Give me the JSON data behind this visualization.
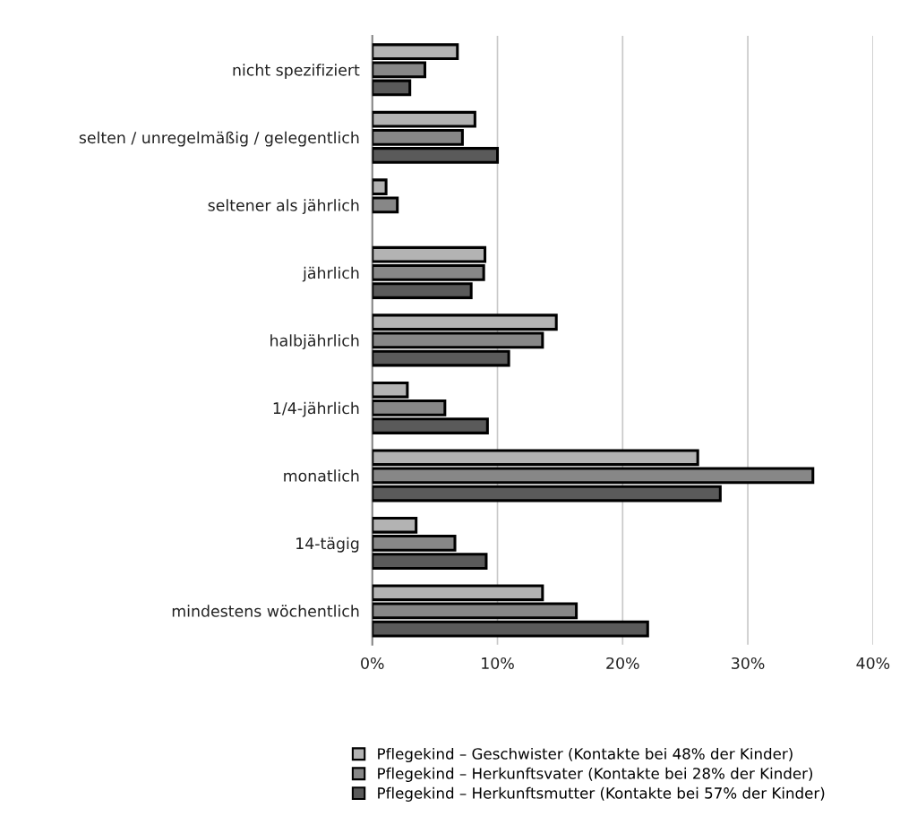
{
  "chart_data": {
    "type": "bar",
    "orientation": "horizontal",
    "categories": [
      "nicht spezifiziert",
      "selten / unregelmäßig / gelegentlich",
      "seltener als jährlich",
      "jährlich",
      "halbjährlich",
      "1/4-jährlich",
      "monatlich",
      "14-tägig",
      "mindestens wöchentlich"
    ],
    "series": [
      {
        "name": "Pflegekind – Geschwister (Kontakte bei 48% der Kinder)",
        "color": "#b3b3b3",
        "values": [
          6.8,
          8.2,
          1.1,
          9.0,
          14.7,
          2.8,
          26.0,
          3.5,
          13.6
        ]
      },
      {
        "name": "Pflegekind – Herkunftsvater (Kontakte bei 28% der Kinder)",
        "color": "#878787",
        "values": [
          4.2,
          7.2,
          2.0,
          8.9,
          13.6,
          5.8,
          35.2,
          6.6,
          16.3
        ]
      },
      {
        "name": "Pflegekind – Herkunftsmutter (Kontakte bei 57% der Kinder)",
        "color": "#5a5a5a",
        "values": [
          3.0,
          10.0,
          null,
          7.9,
          10.9,
          9.2,
          27.8,
          9.1,
          22.0
        ]
      }
    ],
    "xlim": [
      0,
      40
    ],
    "xticks": [
      {
        "value": 0,
        "label": "0%"
      },
      {
        "value": 10,
        "label": "10%"
      },
      {
        "value": 20,
        "label": "20%"
      },
      {
        "value": 30,
        "label": "30%"
      },
      {
        "value": 40,
        "label": "40%"
      }
    ],
    "grid": "x",
    "legend": "bottom"
  }
}
